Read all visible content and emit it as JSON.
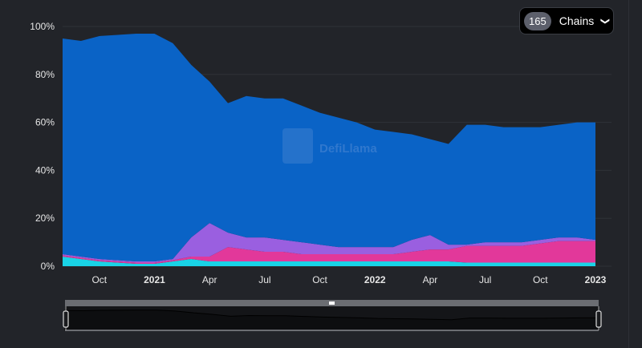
{
  "selector": {
    "count": "165",
    "label": "Chains",
    "icon": "chevron-down-icon"
  },
  "watermark": "DefiLlama",
  "chart_data": {
    "type": "area",
    "stacked": true,
    "x": [
      "2020-08",
      "2020-09",
      "2020-10",
      "2020-11",
      "2020-12",
      "2021-01",
      "2021-02",
      "2021-03",
      "2021-04",
      "2021-05",
      "2021-06",
      "2021-07",
      "2021-08",
      "2021-09",
      "2021-10",
      "2021-11",
      "2021-12",
      "2022-01",
      "2022-02",
      "2022-03",
      "2022-04",
      "2022-05",
      "2022-06",
      "2022-07",
      "2022-08",
      "2022-09",
      "2022-10",
      "2022-11",
      "2022-12",
      "2023-01"
    ],
    "series": [
      {
        "color": "#19d3e6",
        "values": [
          4,
          3,
          2,
          1.5,
          1,
          1,
          2,
          3,
          2,
          2,
          2,
          2,
          2,
          2,
          2,
          2,
          2,
          2,
          2,
          2,
          2,
          2,
          1.5,
          1.5,
          1.5,
          1.5,
          1.5,
          1.5,
          1.5,
          1.5
        ]
      },
      {
        "color": "#e2389a",
        "values": [
          0.5,
          0.5,
          0.5,
          0.5,
          0.5,
          0.5,
          0.5,
          1,
          2,
          6,
          5,
          4,
          4,
          3,
          3,
          3,
          3,
          3,
          3,
          4,
          5,
          5,
          7,
          7,
          7,
          7,
          8,
          9,
          9,
          9
        ]
      },
      {
        "color": "#9a5fe0",
        "values": [
          0.5,
          0.5,
          0.5,
          0.5,
          0.5,
          0.5,
          0.5,
          8,
          14,
          6,
          5,
          6,
          5,
          5,
          4,
          3,
          3,
          3,
          3,
          5,
          6,
          2,
          0.5,
          1.5,
          1.5,
          1.5,
          1.5,
          1.5,
          1.5,
          0.5
        ]
      },
      {
        "color": "#0a63c6",
        "values": [
          90,
          90,
          93,
          94,
          95,
          95,
          90,
          72,
          59,
          54,
          59,
          58,
          59,
          57,
          55,
          54,
          52,
          49,
          48,
          44,
          40,
          42,
          50,
          49,
          48,
          48,
          47,
          47,
          48,
          49
        ]
      }
    ],
    "y_ticks": [
      "0%",
      "20%",
      "40%",
      "60%",
      "80%",
      "100%"
    ],
    "ylim": [
      0,
      100
    ],
    "x_ticks": [
      {
        "label": "Oct",
        "bold": false
      },
      {
        "label": "2021",
        "bold": true
      },
      {
        "label": "Apr",
        "bold": false
      },
      {
        "label": "Jul",
        "bold": false
      },
      {
        "label": "Oct",
        "bold": false
      },
      {
        "label": "2022",
        "bold": true
      },
      {
        "label": "Apr",
        "bold": false
      },
      {
        "label": "Jul",
        "bold": false
      },
      {
        "label": "Oct",
        "bold": false
      },
      {
        "label": "2023",
        "bold": true
      }
    ],
    "grid": true
  }
}
